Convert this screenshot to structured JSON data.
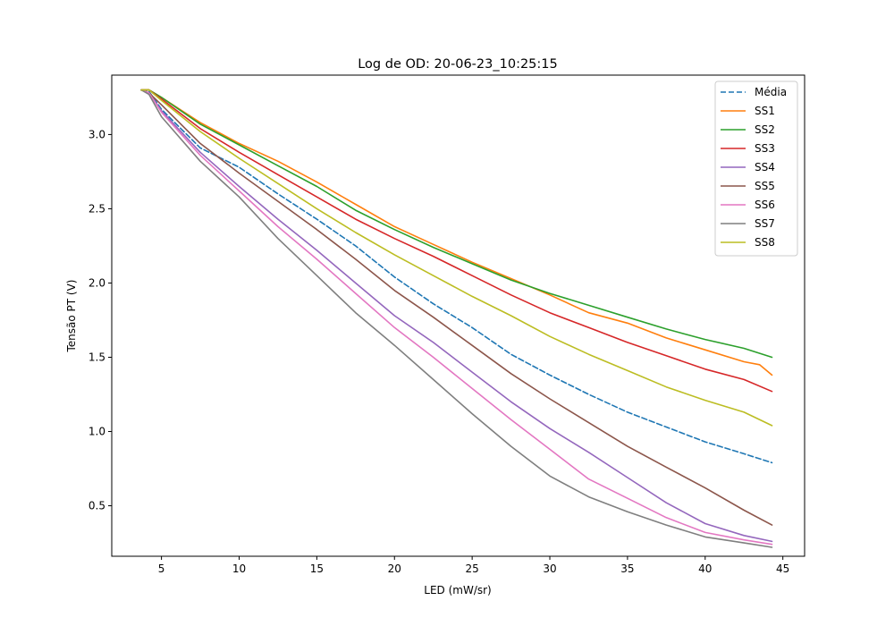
{
  "chart_data": {
    "type": "line",
    "title": "Log de OD: 20-06-23_10:25:15",
    "xlabel": "LED (mW/sr)",
    "ylabel": "Tensão PT (V)",
    "xlim": [
      1.8,
      46.4
    ],
    "ylim": [
      0.16,
      3.4
    ],
    "xticks": [
      5,
      10,
      15,
      20,
      25,
      30,
      35,
      40,
      45
    ],
    "yticks": [
      0.5,
      1.0,
      1.5,
      2.0,
      2.5,
      3.0
    ],
    "grid": false,
    "legend_position": "top-right",
    "series": [
      {
        "name": "Média",
        "color": "#1f77b4",
        "dashed": true,
        "points": [
          [
            3.7,
            3.3
          ],
          [
            4.2,
            3.29
          ],
          [
            5,
            3.17
          ],
          [
            7.5,
            2.91
          ],
          [
            10,
            2.78
          ],
          [
            12.5,
            2.6
          ],
          [
            15,
            2.43
          ],
          [
            17.5,
            2.25
          ],
          [
            20,
            2.04
          ],
          [
            22.5,
            1.86
          ],
          [
            25,
            1.7
          ],
          [
            27.5,
            1.52
          ],
          [
            30,
            1.38
          ],
          [
            32.5,
            1.25
          ],
          [
            35,
            1.13
          ],
          [
            37.5,
            1.03
          ],
          [
            40,
            0.93
          ],
          [
            42.5,
            0.85
          ],
          [
            44.3,
            0.79
          ]
        ]
      },
      {
        "name": "SS1",
        "color": "#ff7f0e",
        "dashed": false,
        "points": [
          [
            3.7,
            3.3
          ],
          [
            4.2,
            3.3
          ],
          [
            5,
            3.25
          ],
          [
            7.5,
            3.08
          ],
          [
            10,
            2.94
          ],
          [
            12.5,
            2.82
          ],
          [
            15,
            2.68
          ],
          [
            17.5,
            2.53
          ],
          [
            20,
            2.38
          ],
          [
            22.5,
            2.26
          ],
          [
            25,
            2.14
          ],
          [
            27.5,
            2.03
          ],
          [
            30,
            1.92
          ],
          [
            32.5,
            1.8
          ],
          [
            35,
            1.73
          ],
          [
            37.5,
            1.63
          ],
          [
            40,
            1.55
          ],
          [
            42.5,
            1.47
          ],
          [
            43.5,
            1.45
          ],
          [
            44.3,
            1.38
          ]
        ]
      },
      {
        "name": "SS2",
        "color": "#2ca02c",
        "dashed": false,
        "points": [
          [
            3.7,
            3.3
          ],
          [
            4.2,
            3.3
          ],
          [
            5,
            3.25
          ],
          [
            7.5,
            3.07
          ],
          [
            10,
            2.93
          ],
          [
            12.5,
            2.79
          ],
          [
            15,
            2.65
          ],
          [
            17.5,
            2.49
          ],
          [
            20,
            2.36
          ],
          [
            22.5,
            2.24
          ],
          [
            25,
            2.13
          ],
          [
            27.5,
            2.02
          ],
          [
            30,
            1.93
          ],
          [
            32.5,
            1.85
          ],
          [
            35,
            1.77
          ],
          [
            37.5,
            1.69
          ],
          [
            40,
            1.62
          ],
          [
            42.5,
            1.56
          ],
          [
            44.3,
            1.5
          ]
        ]
      },
      {
        "name": "SS3",
        "color": "#d62728",
        "dashed": false,
        "points": [
          [
            3.7,
            3.3
          ],
          [
            4.2,
            3.3
          ],
          [
            5,
            3.24
          ],
          [
            7.5,
            3.04
          ],
          [
            10,
            2.88
          ],
          [
            12.5,
            2.73
          ],
          [
            15,
            2.58
          ],
          [
            17.5,
            2.43
          ],
          [
            20,
            2.3
          ],
          [
            22.5,
            2.18
          ],
          [
            25,
            2.05
          ],
          [
            27.5,
            1.92
          ],
          [
            30,
            1.8
          ],
          [
            32.5,
            1.7
          ],
          [
            35,
            1.6
          ],
          [
            37.5,
            1.51
          ],
          [
            40,
            1.42
          ],
          [
            42.5,
            1.35
          ],
          [
            44.3,
            1.27
          ]
        ]
      },
      {
        "name": "SS4",
        "color": "#9467bd",
        "dashed": false,
        "points": [
          [
            3.7,
            3.3
          ],
          [
            4.2,
            3.28
          ],
          [
            5,
            3.16
          ],
          [
            7.5,
            2.88
          ],
          [
            10,
            2.65
          ],
          [
            12.5,
            2.43
          ],
          [
            15,
            2.22
          ],
          [
            17.5,
            2.0
          ],
          [
            20,
            1.78
          ],
          [
            22.5,
            1.6
          ],
          [
            25,
            1.4
          ],
          [
            27.5,
            1.2
          ],
          [
            30,
            1.02
          ],
          [
            32.5,
            0.86
          ],
          [
            35,
            0.69
          ],
          [
            37.5,
            0.52
          ],
          [
            40,
            0.38
          ],
          [
            42.5,
            0.3
          ],
          [
            44.3,
            0.26
          ]
        ]
      },
      {
        "name": "SS5",
        "color": "#8c564b",
        "dashed": false,
        "points": [
          [
            3.7,
            3.3
          ],
          [
            4.2,
            3.28
          ],
          [
            5,
            3.2
          ],
          [
            7.5,
            2.94
          ],
          [
            10,
            2.74
          ],
          [
            12.5,
            2.55
          ],
          [
            15,
            2.36
          ],
          [
            17.5,
            2.16
          ],
          [
            20,
            1.95
          ],
          [
            22.5,
            1.77
          ],
          [
            25,
            1.58
          ],
          [
            27.5,
            1.39
          ],
          [
            30,
            1.22
          ],
          [
            32.5,
            1.06
          ],
          [
            35,
            0.9
          ],
          [
            37.5,
            0.76
          ],
          [
            40,
            0.62
          ],
          [
            42.5,
            0.47
          ],
          [
            44.3,
            0.37
          ]
        ]
      },
      {
        "name": "SS6",
        "color": "#e377c2",
        "dashed": false,
        "points": [
          [
            3.7,
            3.3
          ],
          [
            4.2,
            3.28
          ],
          [
            5,
            3.15
          ],
          [
            7.5,
            2.86
          ],
          [
            10,
            2.62
          ],
          [
            12.5,
            2.38
          ],
          [
            15,
            2.16
          ],
          [
            17.5,
            1.93
          ],
          [
            20,
            1.7
          ],
          [
            22.5,
            1.5
          ],
          [
            25,
            1.29
          ],
          [
            27.5,
            1.08
          ],
          [
            30,
            0.88
          ],
          [
            32.5,
            0.68
          ],
          [
            35,
            0.55
          ],
          [
            37.5,
            0.42
          ],
          [
            40,
            0.32
          ],
          [
            42.5,
            0.27
          ],
          [
            44.3,
            0.24
          ]
        ]
      },
      {
        "name": "SS7",
        "color": "#7f7f7f",
        "dashed": false,
        "points": [
          [
            3.7,
            3.3
          ],
          [
            4.2,
            3.27
          ],
          [
            5,
            3.12
          ],
          [
            7.5,
            2.82
          ],
          [
            10,
            2.58
          ],
          [
            12.5,
            2.3
          ],
          [
            15,
            2.05
          ],
          [
            17.5,
            1.8
          ],
          [
            20,
            1.58
          ],
          [
            22.5,
            1.35
          ],
          [
            25,
            1.12
          ],
          [
            27.5,
            0.9
          ],
          [
            30,
            0.7
          ],
          [
            32.5,
            0.56
          ],
          [
            35,
            0.46
          ],
          [
            37.5,
            0.37
          ],
          [
            40,
            0.29
          ],
          [
            42.5,
            0.25
          ],
          [
            44.3,
            0.22
          ]
        ]
      },
      {
        "name": "SS8",
        "color": "#bcbd22",
        "dashed": false,
        "points": [
          [
            3.7,
            3.3
          ],
          [
            4.2,
            3.3
          ],
          [
            5,
            3.23
          ],
          [
            7.5,
            3.02
          ],
          [
            10,
            2.84
          ],
          [
            12.5,
            2.67
          ],
          [
            15,
            2.5
          ],
          [
            17.5,
            2.34
          ],
          [
            20,
            2.19
          ],
          [
            22.5,
            2.05
          ],
          [
            25,
            1.91
          ],
          [
            27.5,
            1.78
          ],
          [
            30,
            1.64
          ],
          [
            32.5,
            1.52
          ],
          [
            35,
            1.41
          ],
          [
            37.5,
            1.3
          ],
          [
            40,
            1.21
          ],
          [
            42.5,
            1.13
          ],
          [
            44.3,
            1.04
          ]
        ]
      }
    ]
  }
}
